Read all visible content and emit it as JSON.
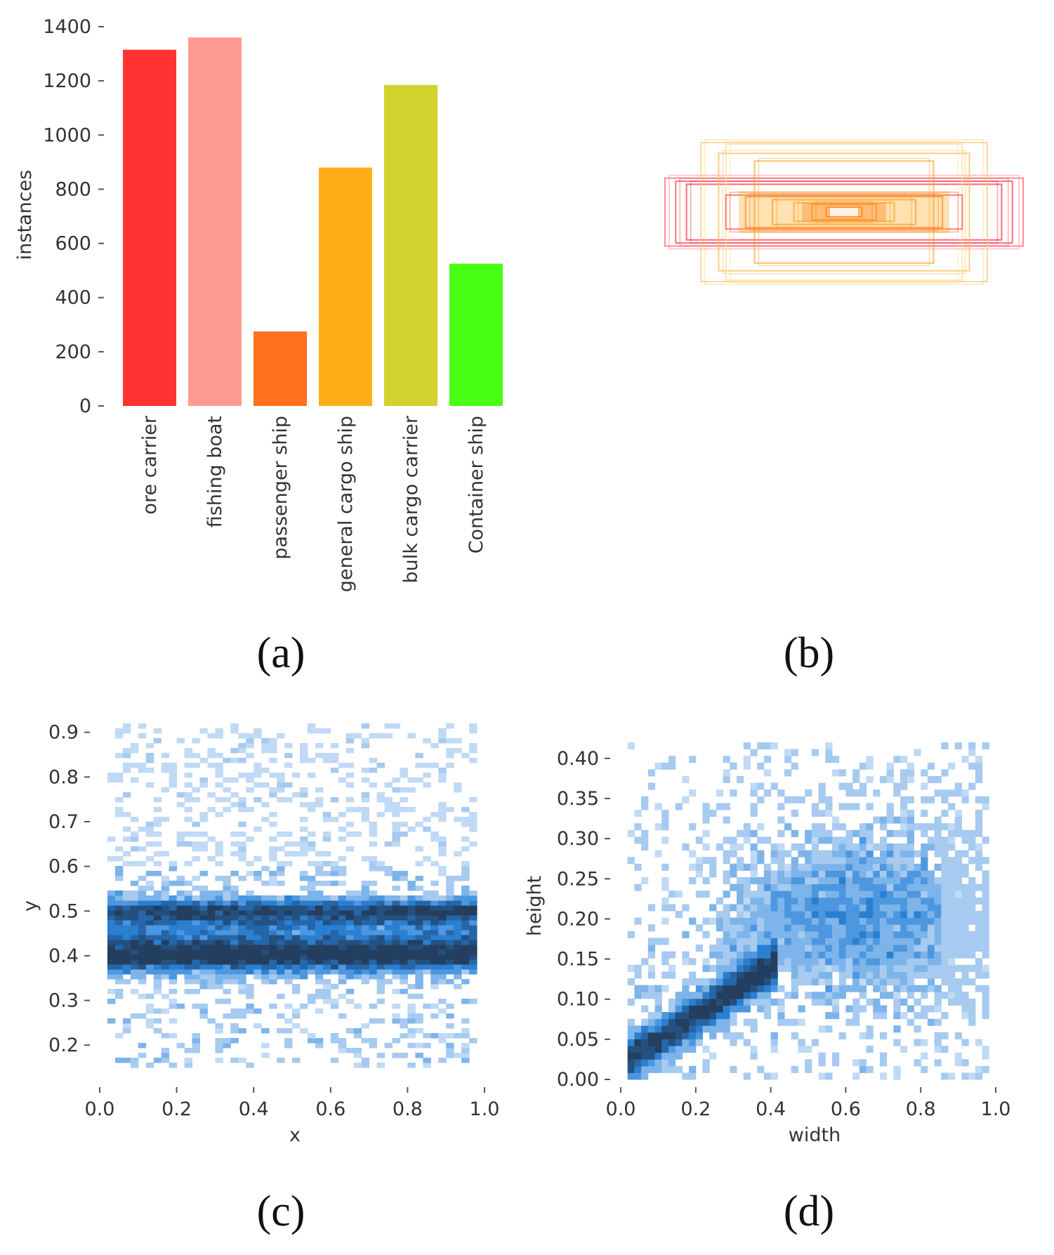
{
  "panel_labels": [
    "(a)",
    "(b)",
    "(c)",
    "(d)"
  ],
  "chart_data": [
    {
      "type": "bar",
      "categories": [
        "ore carrier",
        "fishing boat",
        "passenger ship",
        "general cargo ship",
        "bulk cargo carrier",
        "Container ship"
      ],
      "values": [
        1315,
        1360,
        275,
        880,
        1185,
        525
      ],
      "colors": [
        "#ff3333",
        "#ff9a91",
        "#ff701f",
        "#ffad18",
        "#d2d22e",
        "#47ff12"
      ],
      "ylabel": "instances",
      "xlabel": "",
      "ylim": [
        0,
        1400
      ],
      "yticks": [
        "0",
        "200",
        "400",
        "600",
        "800",
        "1000",
        "1200",
        "1400"
      ]
    },
    {
      "type": "box-overlay",
      "description_role": "nested anchor bounding boxes centered at image center",
      "boxes": [
        {
          "w": 1.0,
          "h": 0.22,
          "color": "#ff6677"
        },
        {
          "w": 0.94,
          "h": 0.2,
          "color": "#ff4455"
        },
        {
          "w": 0.88,
          "h": 0.18,
          "color": "#ff3344"
        },
        {
          "w": 0.8,
          "h": 0.45,
          "color": "#ffcc77"
        },
        {
          "w": 0.7,
          "h": 0.38,
          "color": "#ffbb55"
        },
        {
          "w": 0.66,
          "h": 0.44,
          "color": "#ffdd99"
        },
        {
          "w": 0.5,
          "h": 0.33,
          "color": "#ffaa33"
        },
        {
          "w": 0.66,
          "h": 0.11,
          "color": "#ff5544"
        },
        {
          "w": 0.55,
          "h": 0.1,
          "color": "#ff7733"
        },
        {
          "w": 0.4,
          "h": 0.08,
          "color": "#ff9933"
        },
        {
          "w": 0.28,
          "h": 0.06,
          "color": "#ffaa22"
        },
        {
          "w": 0.18,
          "h": 0.05,
          "color": "#ff8822"
        },
        {
          "w": 0.1,
          "h": 0.03,
          "color": "#ff6600"
        }
      ]
    },
    {
      "type": "heatmap",
      "title": "",
      "xlabel": "x",
      "ylabel": "y",
      "xlim": [
        0.0,
        1.0
      ],
      "ylim": [
        0.15,
        0.92
      ],
      "xticks": [
        "0.0",
        "0.2",
        "0.4",
        "0.6",
        "0.8",
        "1.0"
      ],
      "yticks": [
        "0.2",
        "0.3",
        "0.4",
        "0.5",
        "0.6",
        "0.7",
        "0.8",
        "0.9"
      ],
      "distribution": "dense horizontal band between y≈0.33 and y≈0.52 across x 0.03–0.97, strongest near y≈0.40 and y≈0.50; sparse points up to y≈0.88"
    },
    {
      "type": "heatmap",
      "title": "",
      "xlabel": "width",
      "ylabel": "height",
      "xlim": [
        0.0,
        1.0
      ],
      "ylim": [
        0.0,
        0.42
      ],
      "xticks": [
        "0.0",
        "0.2",
        "0.4",
        "0.6",
        "0.8",
        "1.0"
      ],
      "yticks": [
        "0.00",
        "0.05",
        "0.10",
        "0.15",
        "0.20",
        "0.25",
        "0.30",
        "0.35",
        "0.40"
      ],
      "distribution": "strong diagonal ridge from (0.02,0.02) to (0.35,0.12); broad cloud width 0.3–1.0, height 0.1–0.35"
    }
  ]
}
